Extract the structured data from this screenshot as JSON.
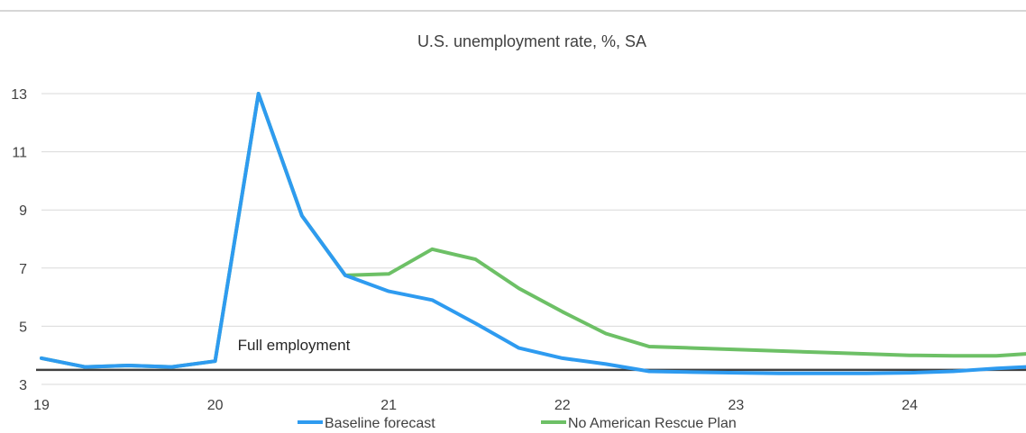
{
  "chart_data": {
    "type": "line",
    "title": "U.S. unemployment  rate, %, SA",
    "xlabel": "",
    "ylabel": "",
    "xlim": [
      19,
      24.67
    ],
    "ylim": [
      3,
      13
    ],
    "yticks": [
      3,
      5,
      7,
      9,
      11,
      13
    ],
    "xticks": [
      19,
      20,
      21,
      22,
      23,
      24
    ],
    "xtick_labels": [
      "19",
      "20",
      "21",
      "22",
      "23",
      "24"
    ],
    "grid": "horizontal",
    "legend_position": "bottom",
    "x": [
      19.0,
      19.25,
      19.5,
      19.75,
      20.0,
      20.25,
      20.5,
      20.75,
      21.0,
      21.25,
      21.5,
      21.75,
      22.0,
      22.25,
      22.5,
      22.75,
      23.0,
      23.25,
      23.5,
      23.75,
      24.0,
      24.25,
      24.5,
      24.67
    ],
    "series": [
      {
        "name": "Baseline forecast",
        "color": "#2E9BF0",
        "values": [
          3.9,
          3.6,
          3.65,
          3.6,
          3.8,
          13.0,
          8.8,
          6.75,
          6.2,
          5.9,
          5.1,
          4.25,
          3.9,
          3.7,
          3.45,
          3.42,
          3.4,
          3.38,
          3.38,
          3.38,
          3.4,
          3.45,
          3.55,
          3.6
        ]
      },
      {
        "name": "No American Rescue Plan",
        "color": "#6DC066",
        "values": [
          3.9,
          3.6,
          3.65,
          3.6,
          3.8,
          13.0,
          8.8,
          6.75,
          6.8,
          7.65,
          7.3,
          6.3,
          5.5,
          4.75,
          4.3,
          4.25,
          4.2,
          4.15,
          4.1,
          4.05,
          4.0,
          3.98,
          3.98,
          4.05
        ]
      }
    ],
    "reference_line": {
      "value": 3.5,
      "label": "Full employment",
      "color": "#404040"
    }
  }
}
